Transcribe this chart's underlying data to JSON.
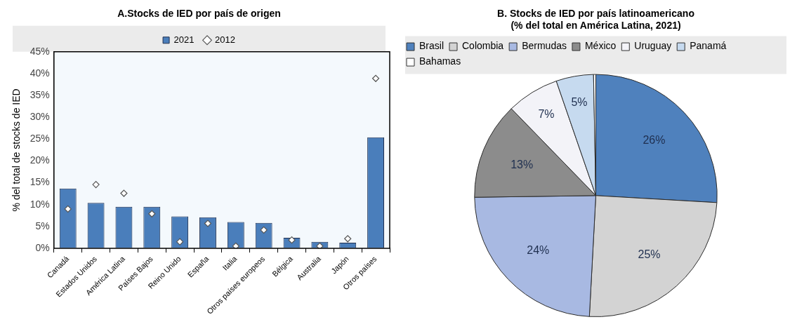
{
  "chart_data": [
    {
      "type": "bar",
      "title": "A.Stocks de IED por país de origen",
      "ylabel": "% del total de stocks de IED",
      "categories": [
        "Canadá",
        "Estados Unidos",
        "América Latina",
        "Países Bajos",
        "Reino Unido",
        "España",
        "Italia",
        "Otros países europeos",
        "Bélgica",
        "Australia",
        "Japón",
        "Otros países"
      ],
      "series": [
        {
          "name": "2021",
          "type": "bar",
          "color": "#4a7ebb",
          "values": [
            13.7,
            10.4,
            9.5,
            9.5,
            7.3,
            7.1,
            6.0,
            5.8,
            2.4,
            1.5,
            1.3,
            25.4
          ]
        },
        {
          "name": "2012",
          "type": "scatter",
          "color": "#ffffff",
          "marker": "diamond",
          "values": [
            9.0,
            14.6,
            12.6,
            7.9,
            1.5,
            5.7,
            0.5,
            4.2,
            1.9,
            0.5,
            2.2,
            38.9
          ]
        }
      ],
      "ylim": [
        0,
        45
      ],
      "yticks": [
        {
          "value": 0,
          "label": "0%"
        },
        {
          "value": 5,
          "label": "5%"
        },
        {
          "value": 10,
          "label": "10%"
        },
        {
          "value": 15,
          "label": "15%"
        },
        {
          "value": 20,
          "label": "20%"
        },
        {
          "value": 25,
          "label": "25%"
        },
        {
          "value": 30,
          "label": "30%"
        },
        {
          "value": 35,
          "label": "35%"
        },
        {
          "value": 40,
          "label": "40%"
        },
        {
          "value": 45,
          "label": "45%"
        }
      ],
      "grid": false,
      "legend": "top"
    },
    {
      "type": "pie",
      "title": "B. Stocks de IED por país latinoamericano",
      "subtitle": "(% del total en América Latina, 2021)",
      "categories": [
        "Brasil",
        "Colombia",
        "Bermudas",
        "México",
        "Uruguay",
        "Panamá",
        "Bahamas"
      ],
      "values": [
        26,
        25,
        24,
        13,
        7,
        5,
        0.3
      ],
      "value_labels": [
        "26%",
        "25%",
        "24%",
        "13%",
        "7%",
        "5%",
        null
      ],
      "colors": [
        "#4f81bd",
        "#d3d3d3",
        "#a8b9e2",
        "#8c8c8c",
        "#f3f3f8",
        "#c6daef",
        "#ffffff"
      ],
      "legend": "top"
    }
  ]
}
